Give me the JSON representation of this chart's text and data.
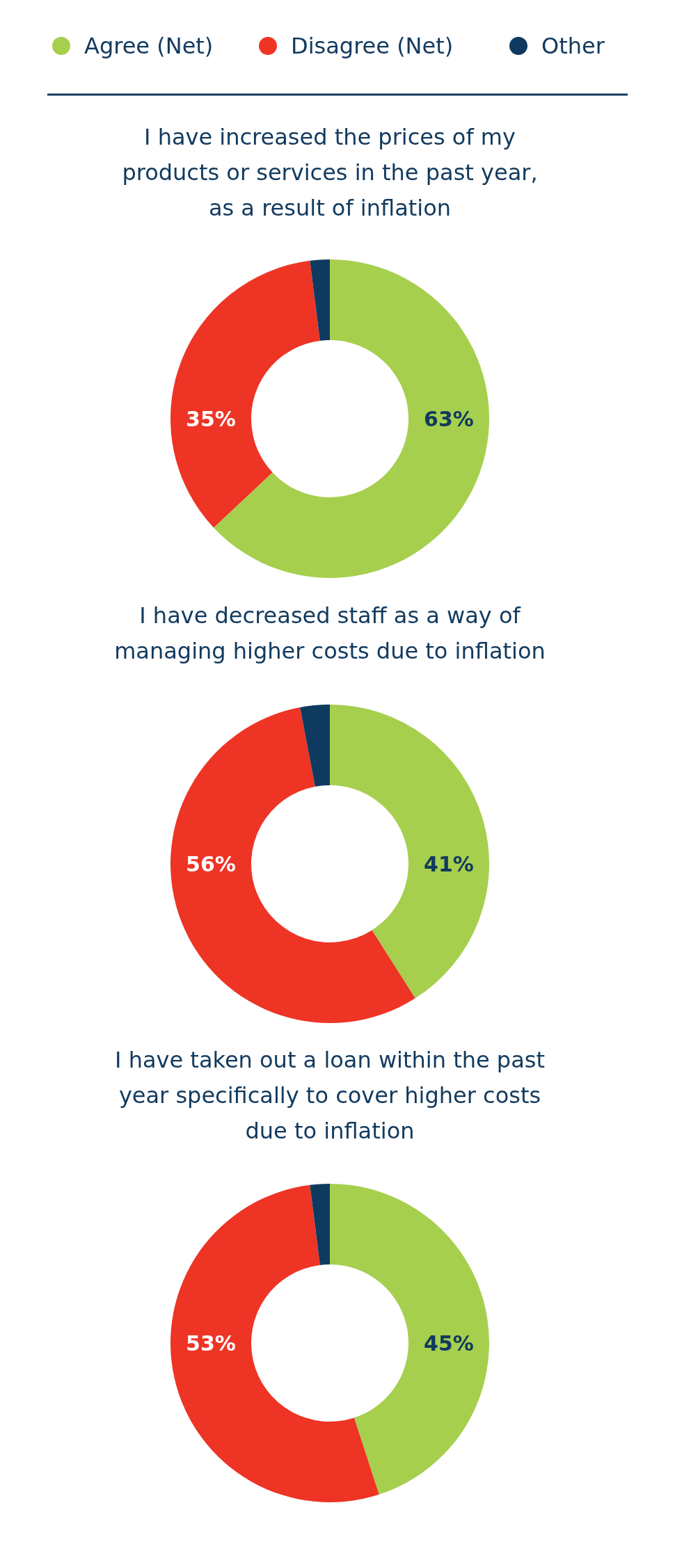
{
  "chart_data": [
    {
      "type": "donut",
      "title": "I have increased the prices of my products or services in the past year, as a result of inflation",
      "categories": [
        "Agree (Net)",
        "Disagree (Net)",
        "Other"
      ],
      "values": [
        63,
        35,
        2
      ],
      "colors": [
        "#a6cf4e",
        "#ee3425",
        "#0f3a5f"
      ],
      "value_labels": [
        "63%",
        "35%",
        null
      ],
      "legend": "top"
    },
    {
      "type": "donut",
      "title": "I have decreased staff as a way of managing higher costs due to inflation",
      "categories": [
        null,
        null,
        null
      ],
      "values": [
        41,
        56,
        3
      ],
      "colors": [
        "#a6cf4e",
        "#ee3425",
        "#0f3a5f"
      ],
      "value_labels": [
        "41%",
        "56%",
        null
      ]
    },
    {
      "type": "donut",
      "title": "I have taken out a loan within the past year specifically to cover higher costs due to inflation",
      "categories": [
        null,
        null,
        null
      ],
      "values": [
        45,
        53,
        2
      ],
      "colors": [
        "#a6cf4e",
        "#ee3425",
        "#0f3a5f"
      ],
      "value_labels": [
        "45%",
        "53%",
        null
      ]
    }
  ]
}
